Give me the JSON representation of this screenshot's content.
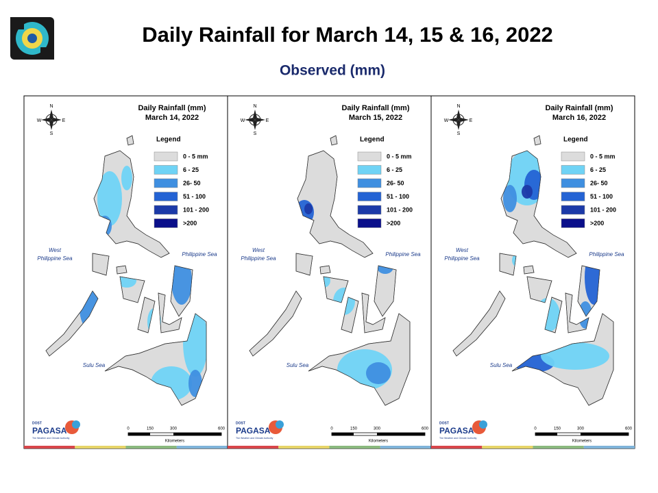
{
  "header": {
    "title": "Daily Rainfall for March 14, 15 & 16, 2022",
    "subtitle": "Observed (mm)"
  },
  "panels": [
    {
      "title": "Daily Rainfall (mm)",
      "date": "March 14, 2022"
    },
    {
      "title": "Daily Rainfall (mm)",
      "date": "March 15, 2022"
    },
    {
      "title": "Daily Rainfall (mm)",
      "date": "March 16, 2022"
    }
  ],
  "legend": {
    "title": "Legend",
    "items": [
      {
        "label": "0 - 5 mm",
        "color": "#dcdcdc"
      },
      {
        "label": "6 - 25",
        "color": "#6fd3f5"
      },
      {
        "label": "26- 50",
        "color": "#3f8fe0"
      },
      {
        "label": "51 - 100",
        "color": "#2463d4"
      },
      {
        "label": "101 - 200",
        "color": "#1c3aa8"
      },
      {
        "label": ">200",
        "color": "#0a0f8a"
      }
    ]
  },
  "compass": {
    "n": "N",
    "s": "S",
    "e": "E",
    "w": "W"
  },
  "seas": {
    "west_line1": "West",
    "west_line2": "Philippine Sea",
    "east": "Philippine Sea",
    "sulu": "Sulu Sea"
  },
  "scale": {
    "ticks": [
      "0",
      "150",
      "300",
      "600"
    ],
    "unit": "Kilometers"
  },
  "logo": {
    "dost": "DOST",
    "name": "PAGASA",
    "tagline": "The Weather and Climate Authority"
  }
}
